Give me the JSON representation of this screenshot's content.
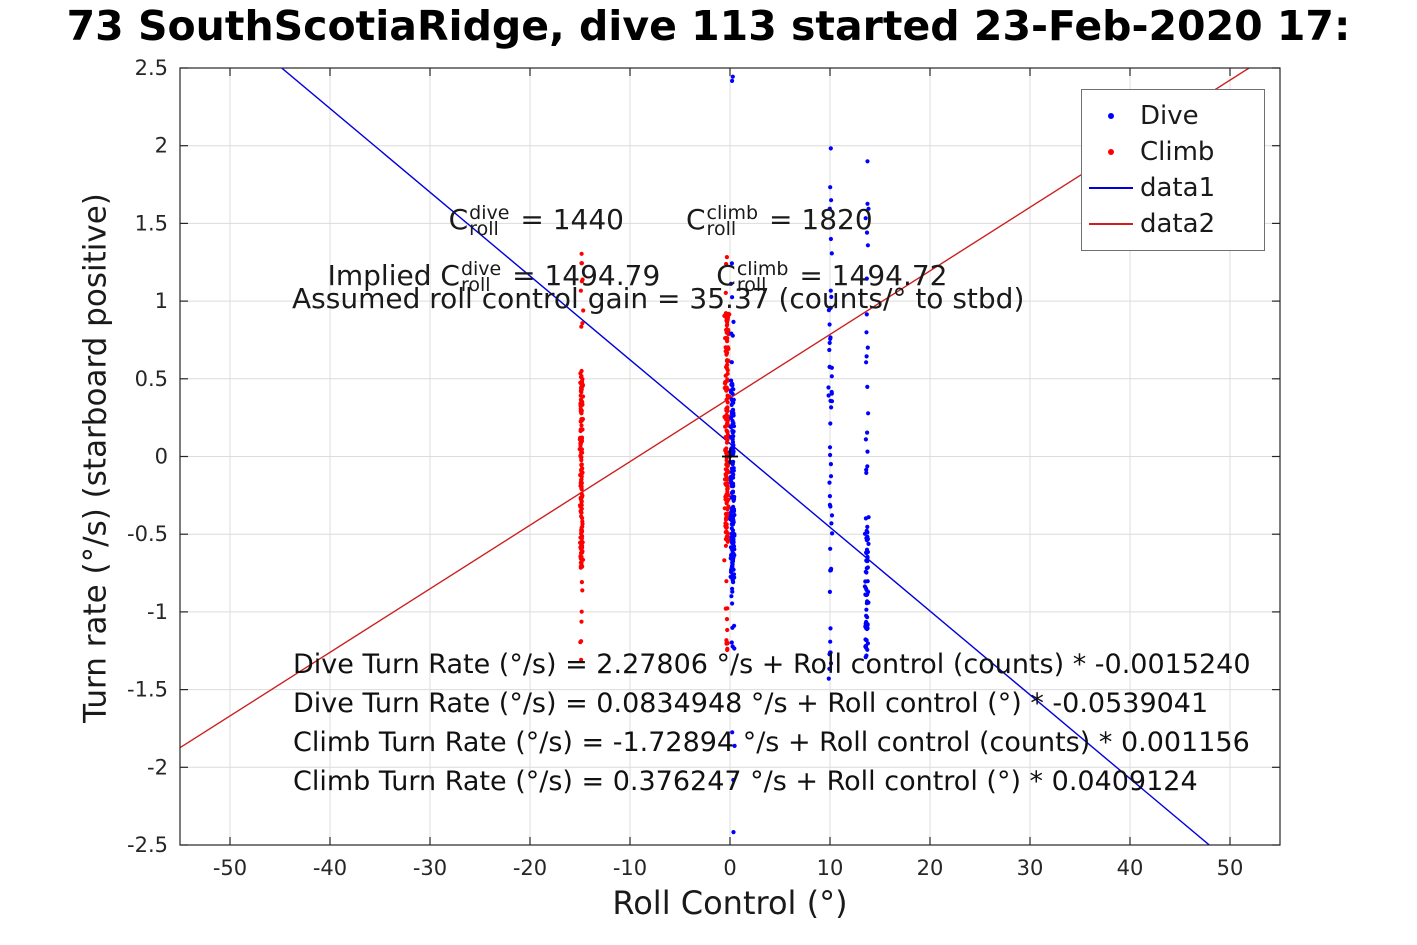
{
  "chart_data": {
    "type": "scatter",
    "title": "73 SouthScotiaRidge, dive 113 started 23-Feb-2020 17:",
    "xlabel": "Roll Control (°)",
    "ylabel": "Turn rate (°/s) (starboard positive)",
    "xlim": [
      -55,
      55
    ],
    "ylim": [
      -2.5,
      2.5
    ],
    "xticks": [
      -50,
      -40,
      -30,
      -20,
      -10,
      0,
      10,
      20,
      30,
      40,
      50
    ],
    "yticks": [
      -2.5,
      -2,
      -1.5,
      -1,
      -0.5,
      0,
      0.5,
      1,
      1.5,
      2,
      2.5
    ],
    "grid": true,
    "seed": 1337,
    "point_radius": 2.1,
    "colors": {
      "dive": "#0000ff",
      "climb": "#ff0000",
      "axes": "#262626",
      "grid": "#dcdcdc"
    },
    "legend": {
      "position": "top-right",
      "items": [
        {
          "label": "Dive",
          "marker": "dot",
          "color": "#0000ff"
        },
        {
          "label": "Climb",
          "marker": "dot",
          "color": "#ff0000"
        },
        {
          "label": "data1",
          "marker": "line",
          "color": "#0000dd"
        },
        {
          "label": "data2",
          "marker": "line",
          "color": "#cc2020"
        }
      ]
    },
    "fit_lines": [
      {
        "name": "data1",
        "color": "#0000dd",
        "intercept": 0.0834948,
        "slope": -0.0539041
      },
      {
        "name": "data2",
        "color": "#cc2020",
        "intercept": 0.376247,
        "slope": 0.0409124
      }
    ],
    "origin_marker": {
      "x": 0,
      "y": 0,
      "symbol": "+",
      "color": "#000000"
    },
    "clusters": [
      {
        "name": "climb-at-minus15",
        "color": "#ff0000",
        "x": -14.85,
        "x_jitter": 0.22,
        "segments": [
          {
            "y0": -0.72,
            "y1": 0.55,
            "n": 160
          },
          {
            "y0": 0.55,
            "y1": 1.35,
            "n": 9
          },
          {
            "y0": -1.32,
            "y1": -0.72,
            "n": 7
          }
        ]
      },
      {
        "name": "climb-at-zero",
        "color": "#ff0000",
        "x": -0.3,
        "x_jitter": 0.28,
        "segments": [
          {
            "y0": -0.55,
            "y1": 0.92,
            "n": 175
          },
          {
            "y0": -1.35,
            "y1": -0.55,
            "n": 13
          },
          {
            "y0": 0.92,
            "y1": 1.32,
            "n": 4
          }
        ]
      },
      {
        "name": "dive-at-zero",
        "color": "#0000ff",
        "x": 0.25,
        "x_jitter": 0.3,
        "segments": [
          {
            "y0": -0.78,
            "y1": 0.5,
            "n": 165
          },
          {
            "y0": -1.45,
            "y1": -0.78,
            "n": 11
          },
          {
            "y0": -2.5,
            "y1": -1.5,
            "n": 4
          },
          {
            "y0": 0.5,
            "y1": 1.25,
            "n": 7
          },
          {
            "y0": 2.4,
            "y1": 2.47,
            "n": 2
          }
        ]
      },
      {
        "name": "dive-at-ten",
        "color": "#0000ff",
        "x": 10.05,
        "x_jitter": 0.25,
        "segments": [
          {
            "y0": -1.45,
            "y1": -0.4,
            "n": 15
          },
          {
            "y0": -0.4,
            "y1": 0.7,
            "n": 22
          },
          {
            "y0": 0.7,
            "y1": 2.0,
            "n": 14
          }
        ]
      },
      {
        "name": "dive-at-fourteen",
        "color": "#0000ff",
        "x": 13.7,
        "x_jitter": 0.28,
        "segments": [
          {
            "y0": -1.3,
            "y1": -0.42,
            "n": 55
          },
          {
            "y0": -0.42,
            "y1": 0.6,
            "n": 10
          },
          {
            "y0": 0.6,
            "y1": 1.9,
            "n": 12
          }
        ]
      }
    ]
  },
  "annotations": {
    "row1": {
      "t1": "C",
      "t1sup": "dive",
      "t1sub": "roll",
      "t2": " = 1440",
      "t3": "C",
      "t3sup": "climb",
      "t3sub": "roll",
      "t4": " = 1820"
    },
    "row2": {
      "t1": "Implied C",
      "t1sup": "dive",
      "t1sub": "roll",
      "t2": " = 1494.79",
      "t3": "C",
      "t3sup": "climb",
      "t3sub": "roll",
      "t4": " = 1494.72"
    },
    "row3": "Assumed roll control gain = 35.37 (counts/° to stbd)",
    "equations": [
      "Dive Turn Rate (°/s) = 2.27806 °/s + Roll control (counts) * -0.0015240",
      "Dive Turn Rate (°/s) = 0.0834948 °/s + Roll control (°) * -0.0539041",
      "Climb Turn Rate (°/s) = -1.72894 °/s + Roll control (counts) * 0.001156",
      "Climb Turn Rate (°/s) = 0.376247 °/s + Roll control (°) * 0.0409124"
    ]
  }
}
